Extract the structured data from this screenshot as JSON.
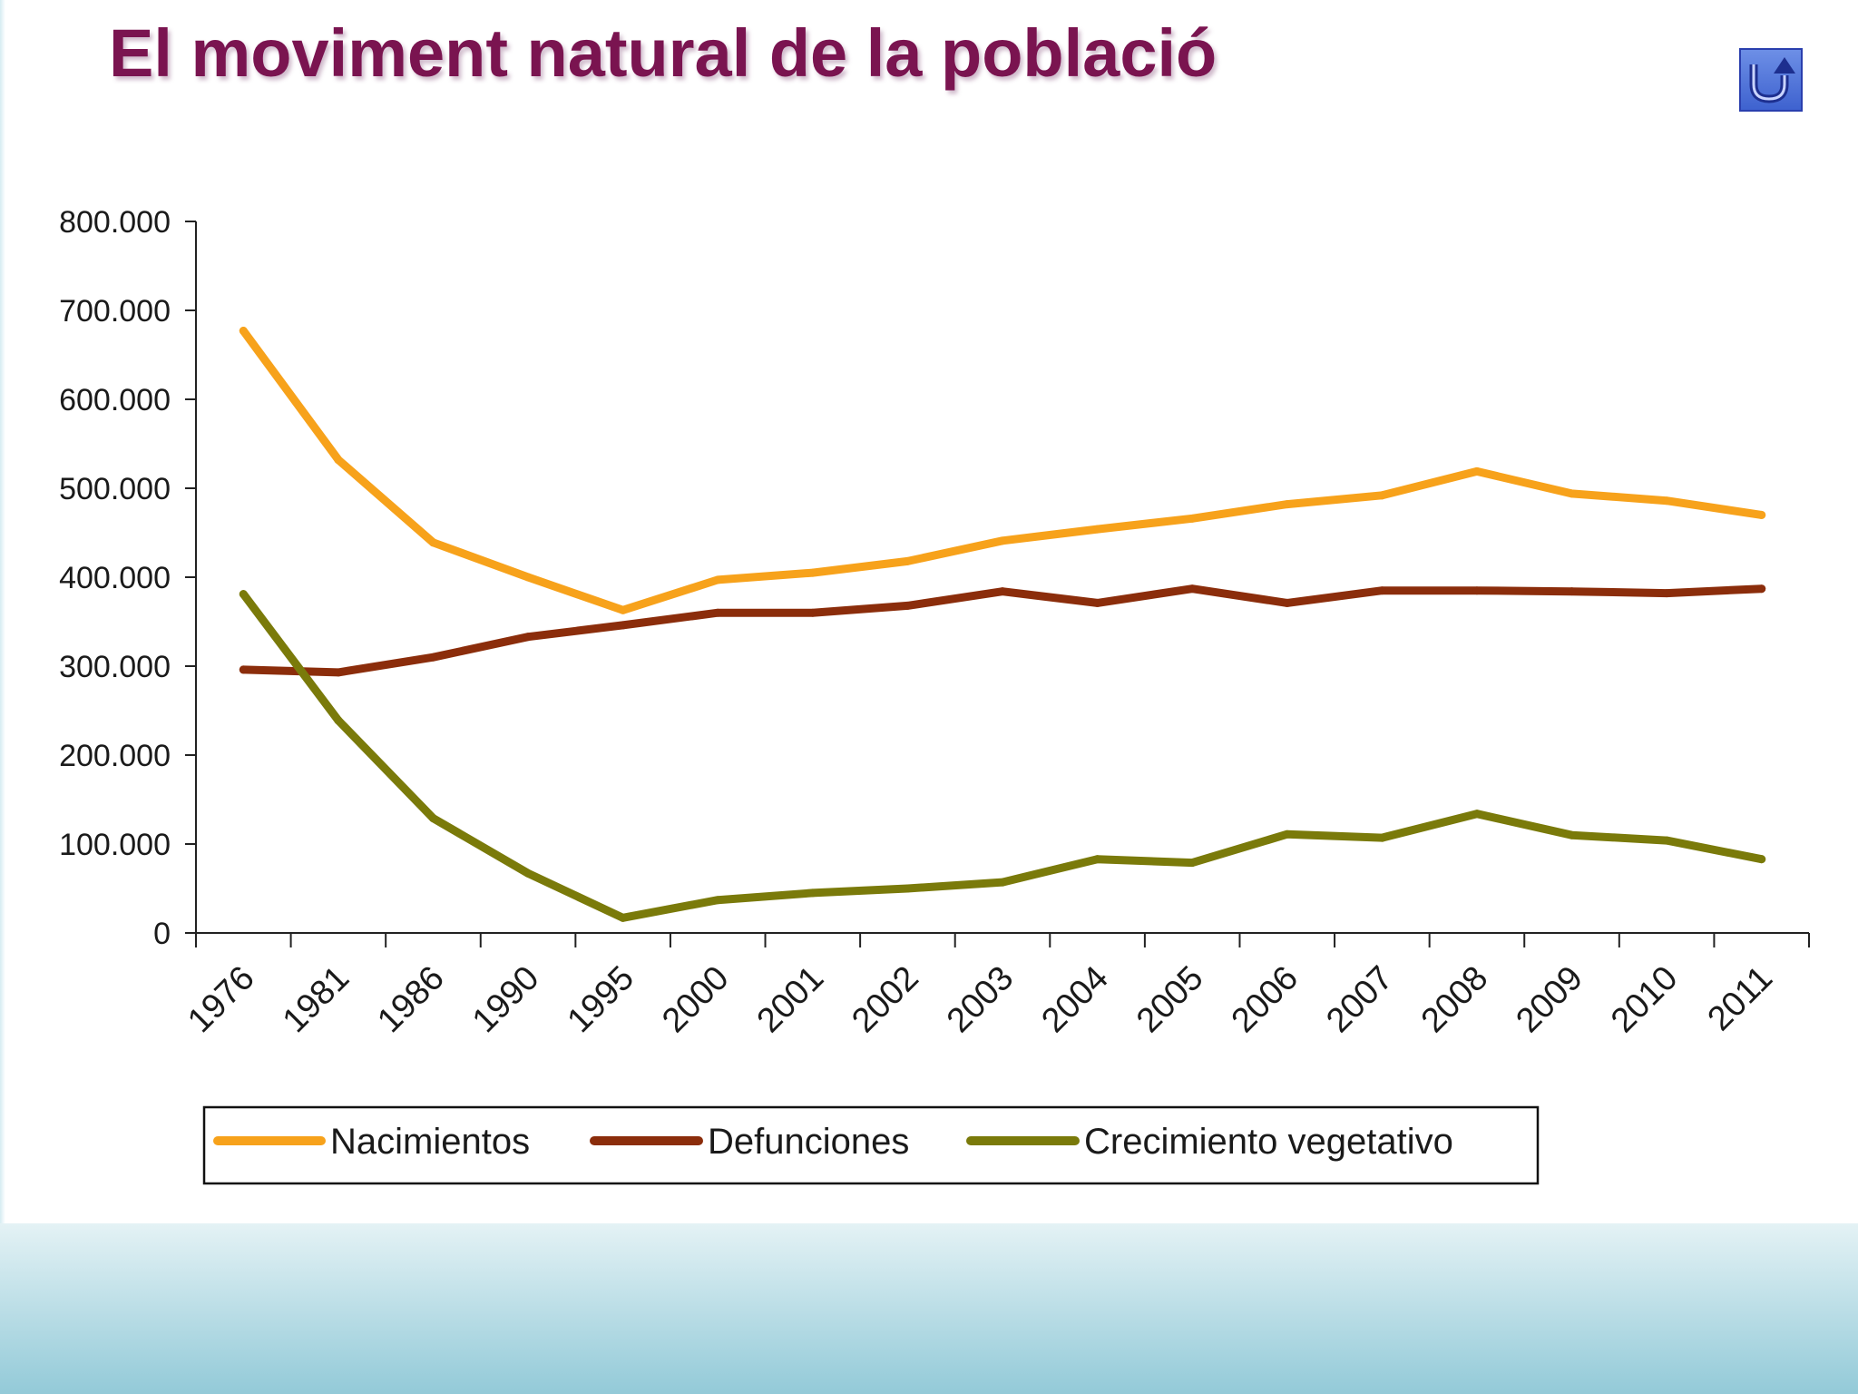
{
  "slide": {
    "title": "El moviment natural de la població",
    "back_button_icon": "return-arrow-icon"
  },
  "colors": {
    "title": "#7a1450",
    "nacimientos": "#f7a21b",
    "defunciones": "#8b2d0b",
    "crecimiento": "#7a7a0a",
    "bottom_band_top": "#e4f2f5",
    "bottom_band_bottom": "#93cad8"
  },
  "chart_data": {
    "type": "line",
    "title": "",
    "xlabel": "",
    "ylabel": "",
    "categories": [
      "1976",
      "1981",
      "1986",
      "1990",
      "1995",
      "2000",
      "2001",
      "2002",
      "2003",
      "2004",
      "2005",
      "2006",
      "2007",
      "2008",
      "2009",
      "2010",
      "2011"
    ],
    "ylim": [
      0,
      800000
    ],
    "yticks": [
      0,
      100000,
      200000,
      300000,
      400000,
      500000,
      600000,
      700000,
      800000
    ],
    "ytick_labels": [
      "0",
      "100.000",
      "200.000",
      "300.000",
      "400.000",
      "500.000",
      "600.000",
      "700.000",
      "800.000"
    ],
    "grid": false,
    "legend_position": "bottom",
    "series": [
      {
        "name": "Nacimientos",
        "values": [
          677000,
          532000,
          439000,
          400000,
          363000,
          397000,
          405000,
          418000,
          441000,
          454000,
          466000,
          482000,
          492000,
          519000,
          494000,
          486000,
          470000
        ]
      },
      {
        "name": "Defunciones",
        "values": [
          296000,
          293000,
          310000,
          333000,
          346000,
          360000,
          360000,
          368000,
          384000,
          371000,
          387000,
          371000,
          385000,
          385000,
          384000,
          382000,
          387000
        ]
      },
      {
        "name": "Crecimiento vegetativo",
        "values": [
          381000,
          239000,
          129000,
          67000,
          17000,
          37000,
          45000,
          50000,
          57000,
          83000,
          79000,
          111000,
          107000,
          134000,
          110000,
          104000,
          83000
        ]
      }
    ]
  }
}
